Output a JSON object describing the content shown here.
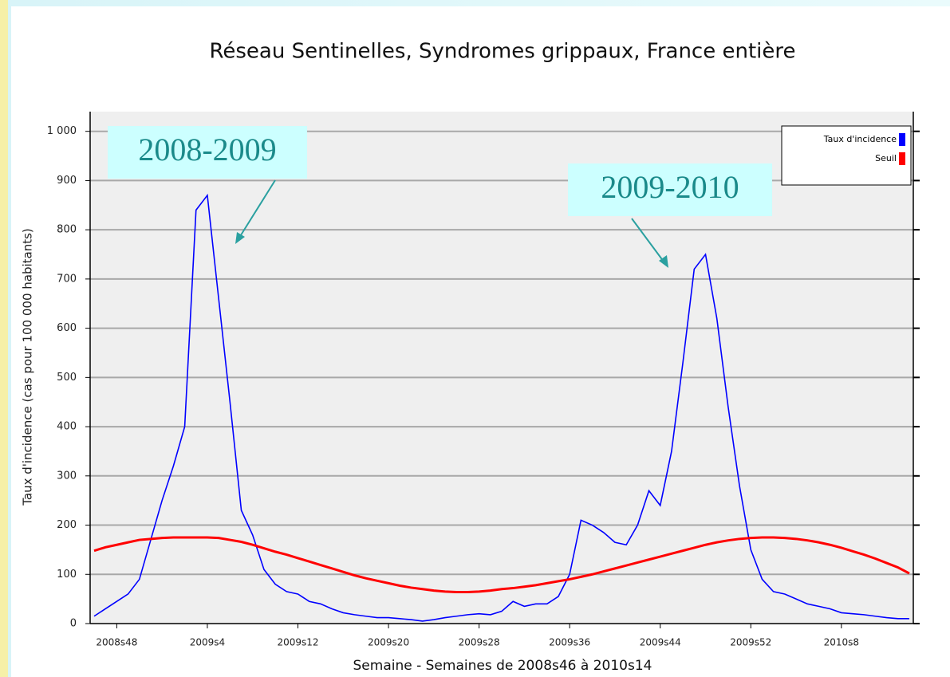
{
  "chart_data": {
    "type": "line",
    "title": "Réseau Sentinelles, Syndromes grippaux, France entière",
    "x_label": "Semaine - Semaines de 2008s46 à 2010s14",
    "y_label": "Taux d'incidence (cas pour 100 000 habitants)",
    "categories": [
      null,
      null,
      "2008s48",
      null,
      null,
      null,
      null,
      null,
      null,
      null,
      "2009s4",
      null,
      null,
      null,
      null,
      null,
      null,
      null,
      "2009s12",
      null,
      null,
      null,
      null,
      null,
      null,
      null,
      "2009s20",
      null,
      null,
      null,
      null,
      null,
      null,
      null,
      "2009s28",
      null,
      null,
      null,
      null,
      null,
      null,
      null,
      "2009s36",
      null,
      null,
      null,
      null,
      null,
      null,
      null,
      "2009s44",
      null,
      null,
      null,
      null,
      null,
      null,
      null,
      "2009s52",
      null,
      null,
      null,
      null,
      null,
      null,
      null,
      "2010s8",
      null,
      null,
      null,
      null,
      null,
      null
    ],
    "series": [
      {
        "name": "Taux d'incidence",
        "color": "#0000ff",
        "values": [
          15,
          30,
          45,
          60,
          90,
          170,
          250,
          320,
          400,
          840,
          870,
          660,
          450,
          230,
          180,
          110,
          80,
          65,
          60,
          45,
          40,
          30,
          22,
          18,
          15,
          12,
          12,
          10,
          8,
          5,
          8,
          12,
          15,
          18,
          20,
          18,
          25,
          45,
          35,
          40,
          40,
          55,
          100,
          210,
          200,
          185,
          165,
          160,
          200,
          270,
          240,
          350,
          530,
          720,
          750,
          620,
          440,
          280,
          150,
          90,
          65,
          60,
          50,
          40,
          35,
          30,
          22,
          20,
          18,
          15,
          12,
          10,
          10
        ]
      },
      {
        "name": "Seuil",
        "color": "#ff0000",
        "values": [
          148,
          155,
          160,
          165,
          170,
          172,
          174,
          175,
          175,
          175,
          175,
          174,
          170,
          166,
          160,
          153,
          146,
          140,
          133,
          126,
          119,
          112,
          105,
          98,
          92,
          87,
          82,
          77,
          73,
          70,
          67,
          65,
          64,
          64,
          65,
          67,
          70,
          72,
          75,
          78,
          82,
          86,
          90,
          95,
          100,
          106,
          112,
          118,
          124,
          130,
          136,
          142,
          148,
          154,
          160,
          165,
          169,
          172,
          174,
          175,
          175,
          174,
          172,
          169,
          165,
          160,
          154,
          147,
          140,
          132,
          123,
          114,
          102
        ]
      }
    ],
    "ylim": [
      0,
      1040
    ],
    "yticks": [
      0,
      100,
      200,
      300,
      400,
      500,
      600,
      700,
      800,
      900,
      {
        "value": 1000,
        "label": "1 000"
      }
    ],
    "grid": true,
    "legend": "top-right",
    "annotations": [
      {
        "text": "2008-2009"
      },
      {
        "text": "2009-2010"
      }
    ]
  }
}
